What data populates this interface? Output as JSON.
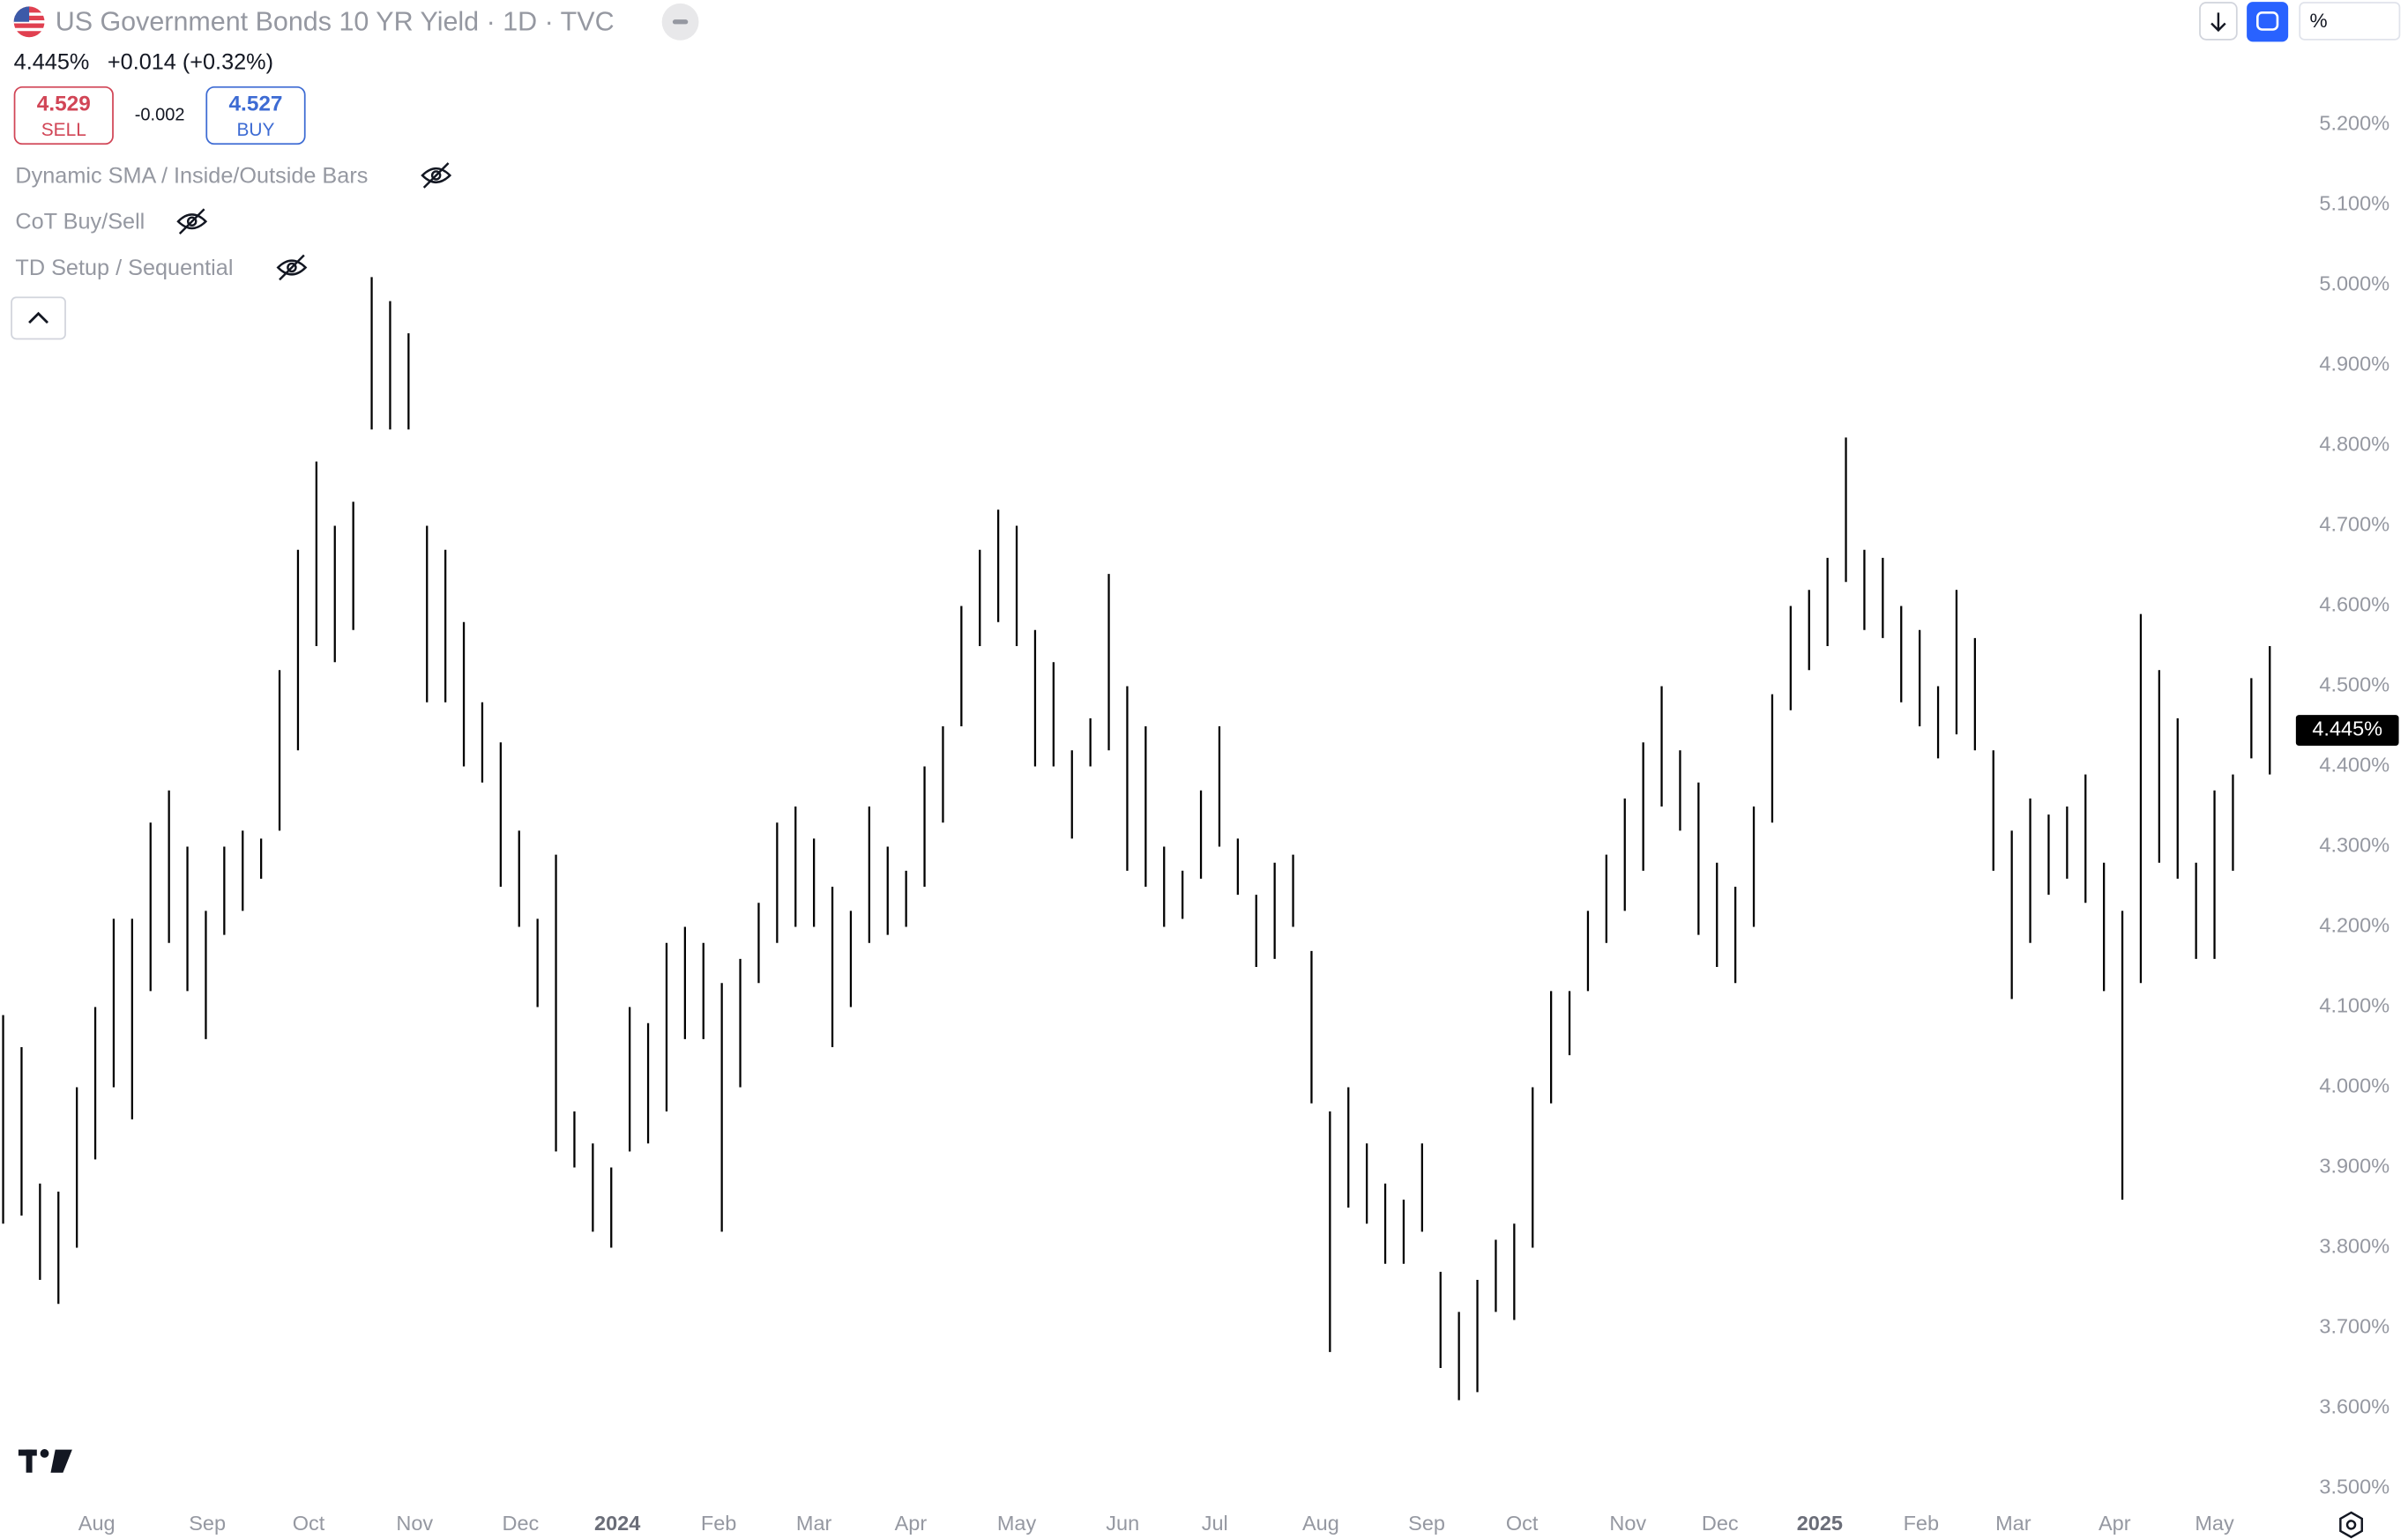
{
  "header": {
    "title": "US Government Bonds 10 YR Yield · 1D · TVC",
    "change": "+0.014 (+0.32%)",
    "sell": {
      "price": "4.529",
      "label": "SELL"
    },
    "spread": "-0.002",
    "buy": {
      "price": "4.527",
      "label": "BUY"
    },
    "indicators": [
      "Dynamic SMA / Inside/Outside Bars",
      "CoT Buy/Sell",
      "TD Setup / Sequential"
    ],
    "unit_field": "%"
  },
  "chart_data": {
    "type": "range-bar",
    "color": "#000000",
    "grid": false,
    "last_value": {
      "value": 4.445,
      "label": "4.445%"
    },
    "high": [
      4.09,
      4.05,
      3.88,
      3.87,
      4.0,
      4.1,
      4.21,
      4.21,
      4.33,
      4.37,
      4.3,
      4.22,
      4.3,
      4.32,
      4.31,
      4.52,
      4.67,
      4.78,
      4.7,
      4.73,
      5.01,
      4.98,
      4.94,
      4.7,
      4.67,
      4.58,
      4.48,
      4.43,
      4.32,
      4.21,
      4.29,
      3.97,
      3.93,
      3.9,
      4.1,
      4.08,
      4.18,
      4.2,
      4.18,
      4.13,
      4.16,
      4.23,
      4.33,
      4.35,
      4.31,
      4.25,
      4.22,
      4.35,
      4.3,
      4.27,
      4.4,
      4.45,
      4.6,
      4.67,
      4.72,
      4.7,
      4.57,
      4.53,
      4.42,
      4.46,
      4.64,
      4.5,
      4.45,
      4.3,
      4.27,
      4.37,
      4.45,
      4.31,
      4.24,
      4.28,
      4.29,
      4.17,
      3.97,
      4.0,
      3.93,
      3.88,
      3.86,
      3.93,
      3.77,
      3.72,
      3.76,
      3.81,
      3.83,
      4.0,
      4.12,
      4.12,
      4.22,
      4.29,
      4.36,
      4.43,
      4.5,
      4.42,
      4.38,
      4.28,
      4.25,
      4.35,
      4.49,
      4.6,
      4.62,
      4.66,
      4.81,
      4.67,
      4.66,
      4.6,
      4.57,
      4.5,
      4.62,
      4.56,
      4.42,
      4.32,
      4.36,
      4.34,
      4.35,
      4.39,
      4.28,
      4.22,
      4.59,
      4.52,
      4.46,
      4.28,
      4.37,
      4.39,
      4.51,
      4.55
    ],
    "low": [
      3.83,
      3.84,
      3.76,
      3.73,
      3.8,
      3.91,
      4.0,
      3.96,
      4.12,
      4.18,
      4.12,
      4.06,
      4.19,
      4.22,
      4.26,
      4.32,
      4.42,
      4.55,
      4.53,
      4.57,
      4.82,
      4.82,
      4.82,
      4.48,
      4.48,
      4.4,
      4.38,
      4.25,
      4.2,
      4.1,
      3.92,
      3.9,
      3.82,
      3.8,
      3.92,
      3.93,
      3.97,
      4.06,
      4.06,
      3.82,
      4.0,
      4.13,
      4.18,
      4.2,
      4.2,
      4.05,
      4.1,
      4.18,
      4.19,
      4.2,
      4.25,
      4.33,
      4.45,
      4.55,
      4.58,
      4.55,
      4.4,
      4.4,
      4.31,
      4.4,
      4.42,
      4.27,
      4.25,
      4.2,
      4.21,
      4.26,
      4.3,
      4.24,
      4.15,
      4.16,
      4.2,
      3.98,
      3.67,
      3.85,
      3.83,
      3.78,
      3.78,
      3.82,
      3.65,
      3.61,
      3.62,
      3.72,
      3.71,
      3.8,
      3.98,
      4.04,
      4.12,
      4.18,
      4.22,
      4.27,
      4.35,
      4.32,
      4.19,
      4.15,
      4.13,
      4.2,
      4.33,
      4.47,
      4.52,
      4.55,
      4.63,
      4.57,
      4.56,
      4.48,
      4.45,
      4.41,
      4.44,
      4.42,
      4.27,
      4.11,
      4.18,
      4.24,
      4.26,
      4.23,
      4.12,
      3.86,
      4.13,
      4.28,
      4.26,
      4.16,
      4.16,
      4.27,
      4.41,
      4.39
    ],
    "xlim": [
      -0.17,
      124
    ],
    "xticks": [
      {
        "value": 5.08,
        "label": "Aug"
      },
      {
        "value": 11.08,
        "label": "Sep"
      },
      {
        "value": 16.58,
        "label": "Oct"
      },
      {
        "value": 22.33,
        "label": "Nov"
      },
      {
        "value": 28.08,
        "label": "Dec"
      },
      {
        "value": 33.33,
        "label": "2024"
      },
      {
        "value": 38.83,
        "label": "Feb"
      },
      {
        "value": 44,
        "label": "Mar"
      },
      {
        "value": 49.25,
        "label": "Apr"
      },
      {
        "value": 55,
        "label": "May"
      },
      {
        "value": 60.75,
        "label": "Jun"
      },
      {
        "value": 65.75,
        "label": "Jul"
      },
      {
        "value": 71.5,
        "label": "Aug"
      },
      {
        "value": 77.25,
        "label": "Sep"
      },
      {
        "value": 82.42,
        "label": "Oct"
      },
      {
        "value": 88.17,
        "label": "Nov"
      },
      {
        "value": 93.17,
        "label": "Dec"
      },
      {
        "value": 98.58,
        "label": "2025"
      },
      {
        "value": 104.08,
        "label": "Feb"
      },
      {
        "value": 109.08,
        "label": "Mar"
      },
      {
        "value": 114.58,
        "label": "Apr"
      },
      {
        "value": 120,
        "label": "May"
      }
    ],
    "ylim": [
      3.489,
      5.355
    ],
    "yticks": [
      {
        "value": 3.5,
        "label": "3.500%"
      },
      {
        "value": 3.6,
        "label": "3.600%"
      },
      {
        "value": 3.7,
        "label": "3.700%"
      },
      {
        "value": 3.8,
        "label": "3.800%"
      },
      {
        "value": 3.9,
        "label": "3.900%"
      },
      {
        "value": 4.0,
        "label": "4.000%"
      },
      {
        "value": 4.1,
        "label": "4.100%"
      },
      {
        "value": 4.2,
        "label": "4.200%"
      },
      {
        "value": 4.3,
        "label": "4.300%"
      },
      {
        "value": 4.4,
        "label": "4.400%"
      },
      {
        "value": 4.5,
        "label": "4.500%"
      },
      {
        "value": 4.6,
        "label": "4.600%"
      },
      {
        "value": 4.7,
        "label": "4.700%"
      },
      {
        "value": 4.8,
        "label": "4.800%"
      },
      {
        "value": 4.9,
        "label": "4.900%"
      },
      {
        "value": 5.0,
        "label": "5.000%"
      },
      {
        "value": 5.1,
        "label": "5.100%"
      },
      {
        "value": 5.2,
        "label": "5.200%"
      }
    ]
  }
}
